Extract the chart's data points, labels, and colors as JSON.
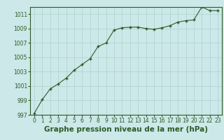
{
  "x": [
    0,
    1,
    2,
    3,
    4,
    5,
    6,
    7,
    8,
    9,
    10,
    11,
    12,
    13,
    14,
    15,
    16,
    17,
    18,
    19,
    20,
    21,
    22,
    23
  ],
  "y": [
    997.2,
    999.1,
    1000.6,
    1001.3,
    1002.1,
    1003.2,
    1004.0,
    1004.8,
    1006.5,
    1007.0,
    1008.8,
    1009.1,
    1009.2,
    1009.2,
    1009.0,
    1008.9,
    1009.1,
    1009.4,
    1009.9,
    1010.1,
    1010.2,
    1012.0,
    1011.5,
    1011.5
  ],
  "ylim": [
    997,
    1012
  ],
  "yticks": [
    997,
    999,
    1001,
    1003,
    1005,
    1007,
    1009,
    1011
  ],
  "xticks": [
    0,
    1,
    2,
    3,
    4,
    5,
    6,
    7,
    8,
    9,
    10,
    11,
    12,
    13,
    14,
    15,
    16,
    17,
    18,
    19,
    20,
    21,
    22,
    23
  ],
  "xlabel": "Graphe pression niveau de la mer (hPa)",
  "line_color": "#2d5a27",
  "marker": "+",
  "marker_color": "#2d5a27",
  "bg_color": "#cce8e8",
  "grid_color": "#aed0d0",
  "tick_color": "#2d5a27",
  "label_color": "#2d5a27",
  "tick_fontsize": 5.5,
  "xlabel_fontsize": 7.5
}
